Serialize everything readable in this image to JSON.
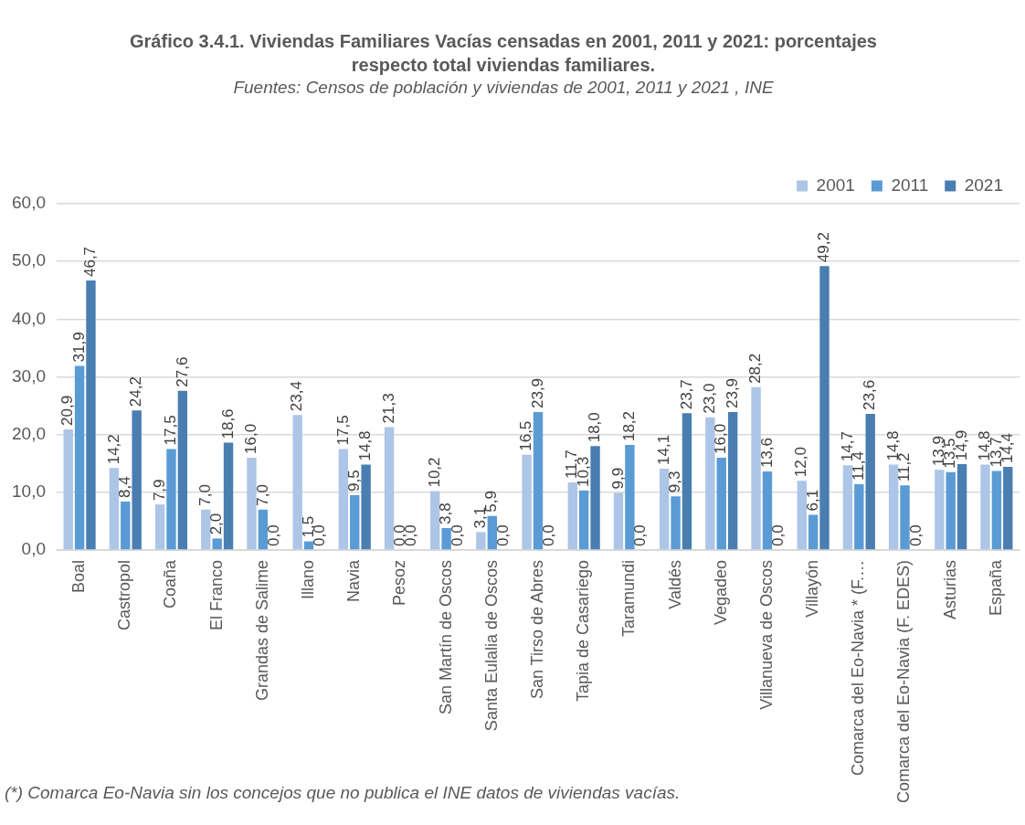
{
  "chart_data": {
    "type": "bar",
    "title": "Gráfico 3.4.1. Viviendas Familiares Vacías censadas en 2001, 2011 y 2021: porcentajes respecto total viviendas familiares.",
    "subtitle": "Fuentes: Censos de población y viviendas de 2001, 2011 y 2021 , INE",
    "annotations": [
      "(*) Comarca Eo-Navia sin los concejos que no publica el INE datos de viviendas vacías."
    ],
    "categories": [
      "Boal",
      "Castropol",
      "Coaña",
      "El Franco",
      "Grandas de Salime",
      "Illano",
      "Navia",
      "Pesoz",
      "San Martín de Oscos",
      "Santa Eulalia de Oscos",
      "San Tirso de Abres",
      "Tapia de Casariego",
      "Taramundi",
      "Valdés",
      "Vegadeo",
      "Villanueva de Oscos",
      "Villayón",
      "Comarca del Eo-Navia * (F.…",
      "Comarca del Eo-Navia (F. EDES)",
      "Asturias",
      "España"
    ],
    "series": [
      {
        "name": "2001",
        "color": "#adc5e6",
        "values": [
          20.9,
          14.2,
          7.9,
          7.0,
          16.0,
          23.4,
          17.5,
          21.3,
          10.2,
          3.1,
          16.5,
          11.7,
          9.9,
          14.1,
          23.0,
          28.2,
          12.0,
          14.7,
          14.8,
          13.9,
          14.8
        ],
        "value_labels": [
          "20,9",
          "14,2",
          "7,9",
          "7,0",
          "16,0",
          "23,4",
          "17,5",
          "21,3",
          "10,2",
          "3,1",
          "16,5",
          "11,7",
          "9,9",
          "14,1",
          "23,0",
          "28,2",
          "12,0",
          "14,7",
          "14,8",
          "13,9",
          "14,8"
        ]
      },
      {
        "name": "2011",
        "color": "#5b9bd5",
        "values": [
          31.9,
          8.4,
          17.5,
          2.0,
          7.0,
          1.5,
          9.5,
          0.0,
          3.8,
          5.9,
          23.9,
          10.3,
          18.2,
          9.3,
          16.0,
          13.6,
          6.1,
          11.4,
          11.2,
          13.5,
          13.7
        ],
        "value_labels": [
          "31,9",
          "8,4",
          "17,5",
          "2,0",
          "7,0",
          "1,5",
          "9,5",
          "0,0",
          "3,8",
          "5,9",
          "23,9",
          "10,3",
          "18,2",
          "9,3",
          "16,0",
          "13,6",
          "6,1",
          "11,4",
          "11,2",
          "13,5",
          "13,7"
        ]
      },
      {
        "name": "2021",
        "color": "#4a7eb1",
        "values": [
          46.7,
          24.2,
          27.6,
          18.6,
          0.0,
          0.0,
          14.8,
          0.0,
          0.0,
          0.0,
          0.0,
          18.0,
          0.0,
          23.7,
          23.9,
          0.0,
          49.2,
          23.6,
          0.0,
          14.9,
          14.4
        ],
        "value_labels": [
          "46,7",
          "24,2",
          "27,6",
          "18,6",
          "0,0",
          "0,0",
          "14,8",
          "0,0",
          "0,0",
          "0,0",
          "0,0",
          "18,0",
          "0,0",
          "23,7",
          "23,9",
          "0,0",
          "49,2",
          "23,6",
          "0,0",
          "14,9",
          "14,4"
        ]
      }
    ],
    "ylim": [
      0,
      60
    ],
    "yticks": [
      {
        "value": 0,
        "label": "0,0"
      },
      {
        "value": 10,
        "label": "10,0"
      },
      {
        "value": 20,
        "label": "20,0"
      },
      {
        "value": 30,
        "label": "30,0"
      },
      {
        "value": 40,
        "label": "40,0"
      },
      {
        "value": 50,
        "label": "50,0"
      },
      {
        "value": 60,
        "label": "60,0"
      }
    ],
    "grid": "y",
    "legend": "top right"
  }
}
